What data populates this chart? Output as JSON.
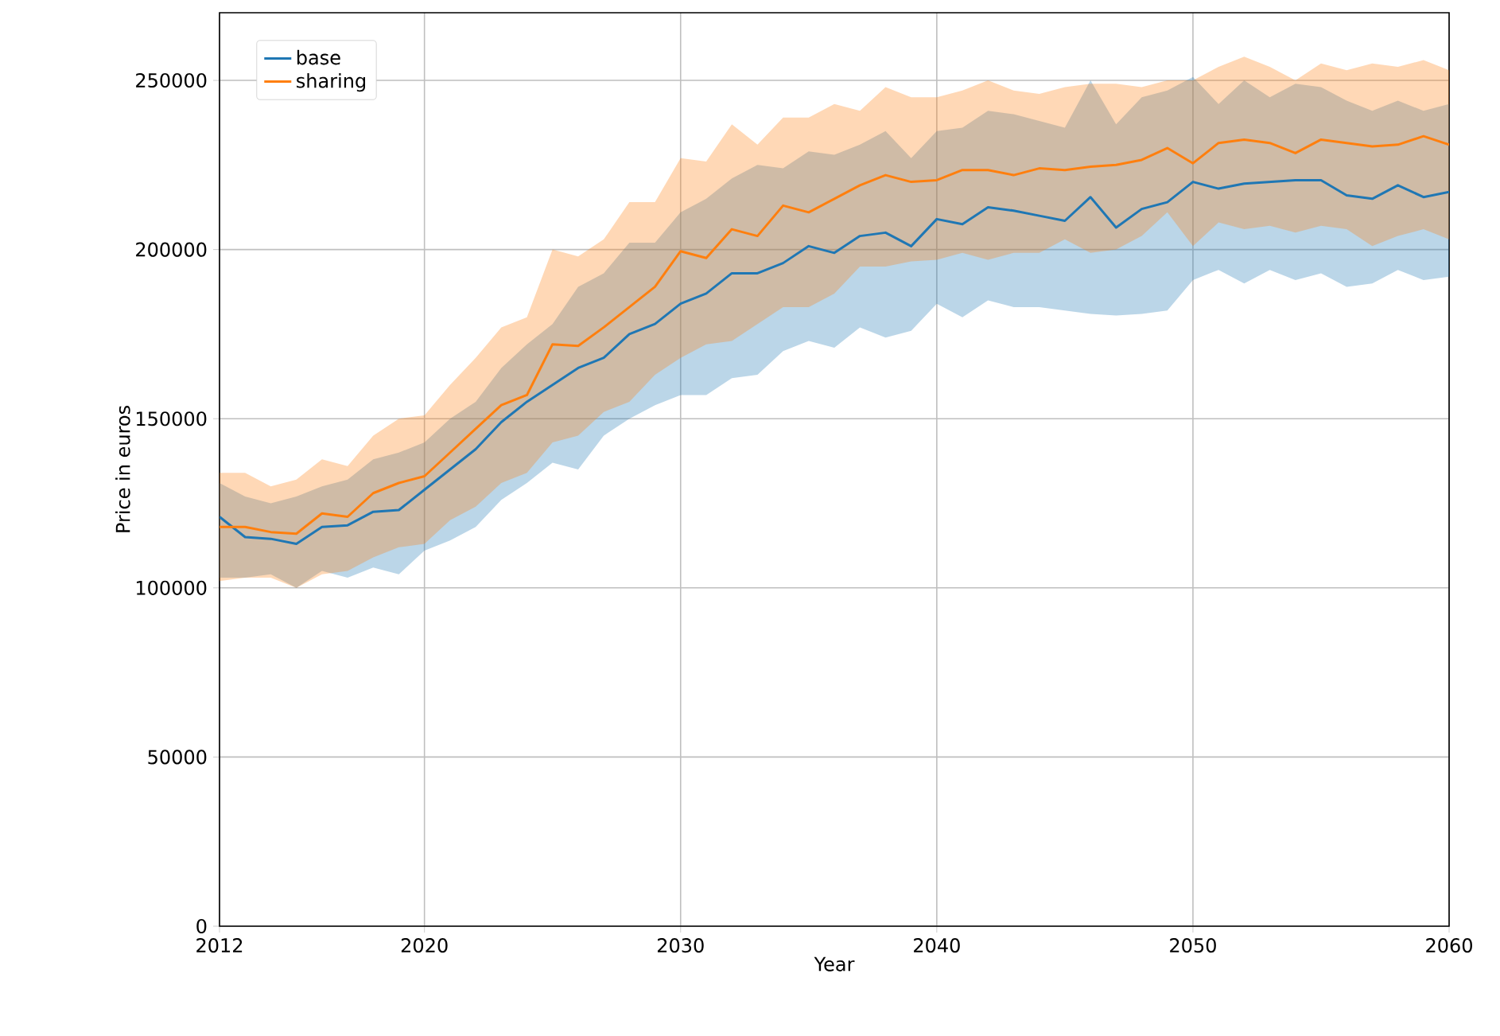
{
  "chart_data": {
    "type": "line",
    "xlabel": "Year",
    "ylabel": "Price in euros",
    "x": [
      2012,
      2013,
      2014,
      2015,
      2016,
      2017,
      2018,
      2019,
      2020,
      2021,
      2022,
      2023,
      2024,
      2025,
      2026,
      2027,
      2028,
      2029,
      2030,
      2031,
      2032,
      2033,
      2034,
      2035,
      2036,
      2037,
      2038,
      2039,
      2040,
      2041,
      2042,
      2043,
      2044,
      2045,
      2046,
      2047,
      2048,
      2049,
      2050,
      2051,
      2052,
      2053,
      2054,
      2055,
      2056,
      2057,
      2058,
      2059,
      2060
    ],
    "series": [
      {
        "name": "base",
        "color": "#1f77b4",
        "values": [
          121000,
          115000,
          114500,
          113000,
          118000,
          118500,
          122500,
          123000,
          129000,
          135000,
          141000,
          149000,
          155000,
          160000,
          165000,
          168000,
          175000,
          178000,
          184000,
          187000,
          193000,
          193000,
          196000,
          201000,
          199000,
          204000,
          205000,
          201000,
          209000,
          207500,
          212500,
          211500,
          210000,
          208500,
          215500,
          206500,
          212000,
          214000,
          220000,
          218000,
          219500,
          220000,
          220500,
          220500,
          216000,
          215000,
          219000,
          215500,
          217000
        ],
        "lower": [
          103000,
          103000,
          104000,
          100000,
          105000,
          103000,
          106000,
          104000,
          111000,
          114000,
          118000,
          126000,
          131000,
          137000,
          135000,
          145000,
          150000,
          154000,
          157000,
          157000,
          162000,
          163000,
          170000,
          173000,
          171000,
          177000,
          174000,
          176000,
          184000,
          180000,
          185000,
          183000,
          183000,
          182000,
          181000,
          180500,
          181000,
          182000,
          191000,
          194000,
          190000,
          194000,
          191000,
          193000,
          189000,
          190000,
          194000,
          191000,
          192000
        ],
        "upper": [
          131000,
          127000,
          125000,
          127000,
          130000,
          132000,
          138000,
          140000,
          143000,
          150000,
          155000,
          165000,
          172000,
          178000,
          189000,
          193000,
          202000,
          202000,
          211000,
          215000,
          221000,
          225000,
          224000,
          229000,
          228000,
          231000,
          235000,
          227000,
          235000,
          236000,
          241000,
          240000,
          238000,
          236000,
          250000,
          237000,
          245000,
          247000,
          251000,
          243000,
          250000,
          245000,
          249000,
          248000,
          244000,
          241000,
          244000,
          241000,
          243000
        ]
      },
      {
        "name": "sharing",
        "color": "#ff7f0e",
        "values": [
          118000,
          118000,
          116500,
          116000,
          122000,
          121000,
          128000,
          131000,
          133000,
          140000,
          147000,
          154000,
          157000,
          172000,
          171500,
          177000,
          183000,
          189000,
          199500,
          197500,
          206000,
          204000,
          213000,
          211000,
          215000,
          219000,
          222000,
          220000,
          220500,
          223500,
          223500,
          222000,
          224000,
          223500,
          224500,
          225000,
          226500,
          230000,
          225500,
          231500,
          232500,
          231500,
          228500,
          232500,
          231500,
          230500,
          231000,
          233500,
          231000
        ],
        "lower": [
          102000,
          103000,
          103000,
          100000,
          104000,
          105000,
          109000,
          112000,
          113000,
          120000,
          124000,
          131000,
          134000,
          143000,
          145000,
          152000,
          155000,
          163000,
          168000,
          172000,
          173000,
          178000,
          183000,
          183000,
          187000,
          195000,
          195000,
          196500,
          197000,
          199000,
          197000,
          199000,
          199000,
          203000,
          199000,
          200000,
          204000,
          211000,
          201000,
          208000,
          206000,
          207000,
          205000,
          207000,
          206000,
          201000,
          204000,
          206000,
          203000
        ],
        "upper": [
          134000,
          134000,
          130000,
          132000,
          138000,
          136000,
          145000,
          150000,
          151000,
          160000,
          168000,
          177000,
          180000,
          200000,
          198000,
          203000,
          214000,
          214000,
          227000,
          226000,
          237000,
          231000,
          239000,
          239000,
          243000,
          241000,
          248000,
          245000,
          245000,
          247000,
          250000,
          247000,
          246000,
          248000,
          249000,
          249000,
          248000,
          250000,
          250000,
          254000,
          257000,
          254000,
          250000,
          255000,
          253000,
          255000,
          254000,
          256000,
          253000
        ]
      }
    ],
    "xlim": [
      2012,
      2060
    ],
    "ylim": [
      0,
      270000
    ],
    "xticks": [
      2012,
      2020,
      2030,
      2040,
      2050,
      2060
    ],
    "yticks": [
      0,
      50000,
      100000,
      150000,
      200000,
      250000
    ],
    "grid": true,
    "legend": "top left",
    "marker": "none",
    "line_style": "solid"
  }
}
